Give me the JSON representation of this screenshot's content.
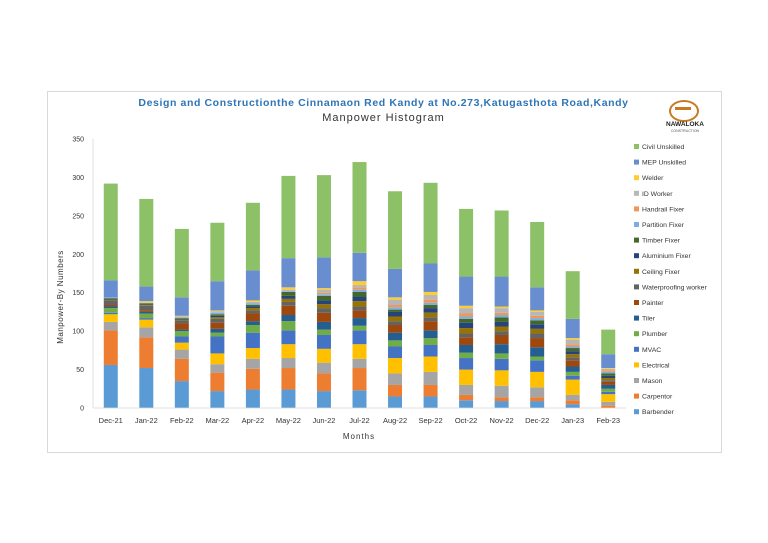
{
  "page": {
    "title": "Design and Constructionthe Cinnamaon Red Kandy at No.273,Katugasthota Road,Kandy",
    "subtitle": "Manpower Histogram",
    "logo_text": "NAWALOKA",
    "logo_subtext": "CONSTRUCTION"
  },
  "colors": {
    "Barbender": "#5b9bd5",
    "Carpentor": "#ed7d31",
    "Mason": "#a5a5a5",
    "Electrical": "#ffc000",
    "MVAC": "#4472c4",
    "Plumber": "#70ad47",
    "Tiler": "#255e91",
    "Painter": "#9e480e",
    "Waterproofing worker": "#636363",
    "Ceiling Fixer": "#997300",
    "Aluminium Fixer": "#264478",
    "Timber Fixer": "#43682b",
    "Partition Fixer": "#7cafdd",
    "Handrail Fixer": "#f1975a",
    "ID Worker": "#b7b7b7",
    "Welder": "#ffcd33",
    "MEP Unskilled": "#698ed0",
    "Civil Unskilled": "#8cc168"
  },
  "chart_data": {
    "type": "bar",
    "stacked": true,
    "title": "Manpower Histogram",
    "xlabel": "Months",
    "ylabel": "Manpower-By Numbers",
    "ylim": [
      0,
      350
    ],
    "yticks": [
      0,
      50,
      100,
      150,
      200,
      250,
      300,
      350
    ],
    "grid": false,
    "legend_position": "right",
    "categories": [
      "Dec-21",
      "Jan-22",
      "Feb-22",
      "Mar-22",
      "Apr-22",
      "May-22",
      "Jun-22",
      "Jul-22",
      "Aug-22",
      "Sep-22",
      "Oct-22",
      "Nov-22",
      "Dec-22",
      "Jan-23",
      "Feb-23"
    ],
    "series": [
      {
        "name": "Barbender",
        "values": [
          56,
          52,
          35,
          22,
          24,
          24,
          22,
          23,
          15,
          15,
          10,
          9,
          9,
          5,
          0
        ]
      },
      {
        "name": "Carpentor",
        "values": [
          45,
          40,
          29,
          24,
          27,
          28,
          23,
          29,
          15,
          15,
          7,
          5,
          5,
          5,
          3
        ]
      },
      {
        "name": "Mason",
        "values": [
          11,
          13,
          12,
          11,
          13,
          13,
          14,
          12,
          15,
          17,
          13,
          15,
          13,
          7,
          5
        ]
      },
      {
        "name": "Electrical",
        "values": [
          10,
          10,
          9,
          14,
          14,
          18,
          18,
          19,
          20,
          20,
          20,
          20,
          20,
          20,
          10
        ]
      },
      {
        "name": "MVAC",
        "values": [
          2,
          2,
          8,
          22,
          20,
          18,
          18,
          18,
          15,
          15,
          15,
          15,
          15,
          5,
          3
        ]
      },
      {
        "name": "Plumber",
        "values": [
          6,
          6,
          7,
          5,
          10,
          12,
          7,
          6,
          8,
          9,
          7,
          7,
          5,
          5,
          4
        ]
      },
      {
        "name": "Tiler",
        "values": [
          2,
          2,
          2,
          5,
          5,
          8,
          10,
          10,
          10,
          10,
          10,
          12,
          12,
          7,
          5
        ]
      },
      {
        "name": "Painter",
        "values": [
          2,
          2,
          8,
          8,
          10,
          12,
          12,
          10,
          10,
          12,
          10,
          12,
          12,
          8,
          4
        ]
      },
      {
        "name": "Waterproofing worker",
        "values": [
          6,
          6,
          4,
          5,
          4,
          5,
          6,
          5,
          5,
          5,
          5,
          5,
          6,
          4,
          2
        ]
      },
      {
        "name": "Ceiling Fixer",
        "values": [
          1,
          1,
          1,
          2,
          3,
          4,
          5,
          7,
          6,
          6,
          7,
          6,
          6,
          4,
          3
        ]
      },
      {
        "name": "Aluminium Fixer",
        "values": [
          1,
          1,
          1,
          2,
          2,
          4,
          5,
          6,
          6,
          6,
          7,
          6,
          6,
          4,
          3
        ]
      },
      {
        "name": "Timber Fixer",
        "values": [
          1,
          1,
          1,
          2,
          2,
          5,
          6,
          6,
          3,
          4,
          5,
          6,
          5,
          4,
          3
        ]
      },
      {
        "name": "Partition Fixer",
        "values": [
          1,
          1,
          1,
          2,
          2,
          1,
          2,
          3,
          3,
          3,
          3,
          3,
          3,
          2,
          2
        ]
      },
      {
        "name": "Handrail Fixer",
        "values": [
          0,
          0,
          0,
          0,
          0,
          0,
          2,
          3,
          3,
          4,
          4,
          3,
          3,
          3,
          2
        ]
      },
      {
        "name": "ID Worker",
        "values": [
          0,
          0,
          1,
          2,
          2,
          2,
          4,
          3,
          7,
          6,
          7,
          6,
          5,
          6,
          2
        ]
      },
      {
        "name": "Welder",
        "values": [
          0,
          2,
          1,
          1,
          2,
          3,
          2,
          5,
          3,
          4,
          3,
          2,
          2,
          2,
          1
        ]
      },
      {
        "name": "MEP Unskilled",
        "values": [
          22,
          19,
          24,
          38,
          39,
          38,
          40,
          37,
          37,
          37,
          38,
          39,
          30,
          25,
          18
        ]
      },
      {
        "name": "Civil Unskilled",
        "values": [
          126,
          114,
          89,
          76,
          88,
          107,
          107,
          118,
          101,
          105,
          88,
          86,
          85,
          62,
          32
        ]
      }
    ]
  }
}
